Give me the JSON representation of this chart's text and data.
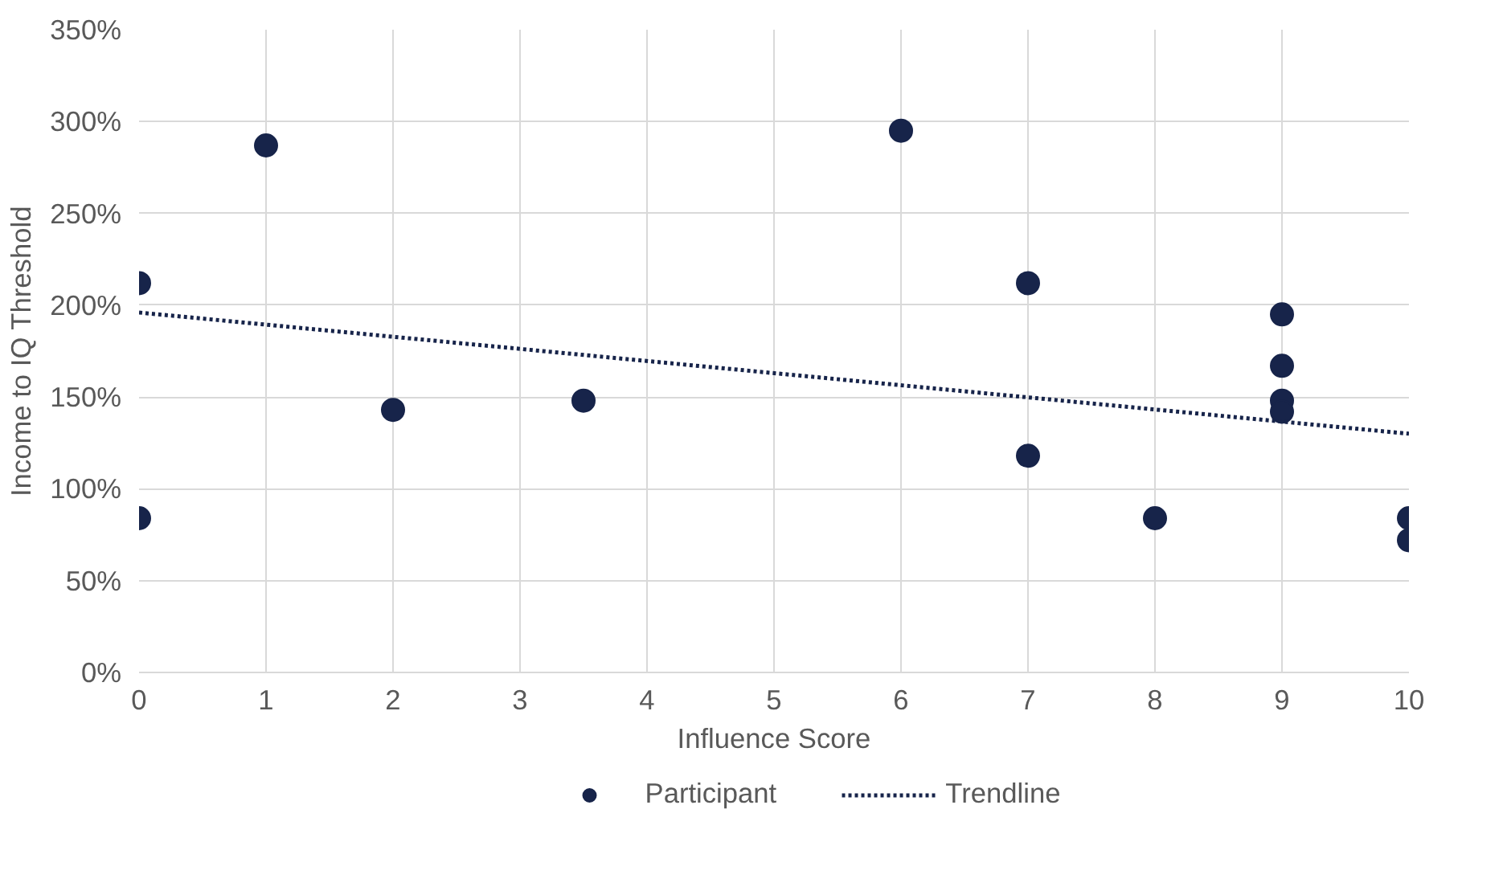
{
  "chart_data": {
    "type": "scatter",
    "xlabel": "Influence Score",
    "ylabel": "Income to IQ Threshold",
    "xlim": [
      0,
      10
    ],
    "xticks": [
      0,
      1,
      2,
      3,
      4,
      5,
      6,
      7,
      8,
      9,
      10
    ],
    "ylim": [
      0,
      350
    ],
    "yticks": [
      {
        "value": 0,
        "label": "0%"
      },
      {
        "value": 50,
        "label": "50%"
      },
      {
        "value": 100,
        "label": "100%"
      },
      {
        "value": 150,
        "label": "150%"
      },
      {
        "value": 200,
        "label": "200%"
      },
      {
        "value": 250,
        "label": "250%"
      },
      {
        "value": 300,
        "label": "300%"
      },
      {
        "value": 350,
        "label": "350%"
      }
    ],
    "grid": true,
    "legend": "bottom",
    "series": [
      {
        "name": "Participant",
        "type": "scatter",
        "marker": "circle",
        "color": "#17244a",
        "x": [
          0,
          0,
          1,
          2,
          3.5,
          6,
          7,
          7,
          8,
          9,
          9,
          9,
          9,
          10,
          10
        ],
        "values": [
          212,
          84,
          287,
          143,
          148,
          295,
          212,
          118,
          84,
          195,
          167,
          148,
          142,
          84,
          72
        ]
      },
      {
        "name": "Trendline",
        "type": "line",
        "color": "#17244a",
        "line_style": "dotted",
        "x": [
          0,
          10
        ],
        "values": [
          196,
          130
        ]
      }
    ]
  }
}
